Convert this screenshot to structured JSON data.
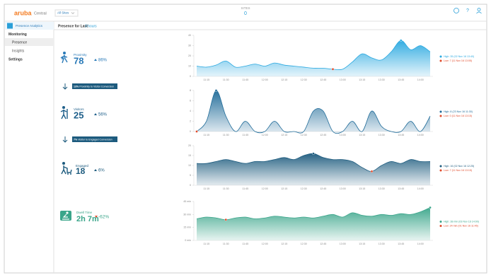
{
  "header": {
    "logo": "aruba",
    "product": "Central",
    "site_filter": "All Sites",
    "sites_label": "SITES",
    "sites_count": "0"
  },
  "sidebar": {
    "title": "Presence Analytics",
    "items": [
      "Monitoring",
      "Presence",
      "Insights",
      "Settings"
    ]
  },
  "main": {
    "period_label": "Presence for Last:",
    "period": "3 hours",
    "metrics": [
      {
        "label": "Proximity",
        "value": "78",
        "change": "86%"
      },
      {
        "label": "Visitors",
        "value": "25",
        "change": "56%"
      },
      {
        "label": "Engaged",
        "value": "18",
        "change": "6%"
      },
      {
        "label": "Dwell Time",
        "value": "2h 7m",
        "change": "-62%"
      }
    ],
    "conversions": [
      {
        "rate": "13%",
        "label": "Proximity to Visitor Conversion"
      },
      {
        "rate": "7%",
        "label": "Visitor to Engaged Conversion"
      }
    ]
  },
  "chart_data": [
    {
      "type": "area",
      "color": "#29a8e0",
      "categories": [
        null,
        "11:15",
        null,
        "11:30",
        null,
        "11:45",
        null,
        "12:00",
        null,
        "12:15",
        null,
        "12:30",
        null,
        "12:45",
        null,
        "13:00",
        null,
        "13:15",
        null,
        "13:30",
        null,
        "13:45",
        null,
        "14:00",
        null
      ],
      "values": [
        10,
        9,
        11,
        15,
        9,
        10,
        12,
        10,
        13,
        11,
        10,
        9,
        8,
        8,
        7,
        7,
        14,
        22,
        18,
        16,
        24,
        35,
        26,
        30,
        24
      ],
      "ylim": [
        0,
        40
      ],
      "yticks": [
        0,
        10,
        20,
        30,
        40
      ],
      "high_label": "High: 35 (02 Nov 16 13:40)",
      "low_label": "Low: 7 (11 Nov 16 13:05)"
    },
    {
      "type": "area",
      "color": "#1e6a98",
      "categories": [
        null,
        "11:15",
        null,
        "11:30",
        null,
        "11:45",
        null,
        "12:00",
        null,
        "12:15",
        null,
        "12:30",
        null,
        "12:45",
        null,
        "13:00",
        null,
        "13:15",
        null,
        "13:30",
        null,
        "13:45",
        null,
        "14:00",
        null
      ],
      "values": [
        0,
        2,
        8,
        3,
        0,
        2,
        0,
        0,
        2,
        0,
        0,
        0,
        4,
        4,
        0,
        0,
        2,
        0,
        4,
        1,
        0,
        0,
        2,
        0,
        3
      ],
      "ylim": [
        0,
        8
      ],
      "yticks": [
        0,
        2,
        4,
        6,
        8
      ],
      "high_label": "High: 8 (23 Nov 16 11:30)",
      "low_label": "Low: 0 (11 Nov 16 13:15)"
    },
    {
      "type": "area",
      "color": "#1d5b7e",
      "categories": [
        null,
        "11:15",
        null,
        "11:30",
        null,
        "11:45",
        null,
        "12:00",
        null,
        "12:15",
        null,
        "12:30",
        null,
        "12:45",
        null,
        "13:00",
        null,
        "13:15",
        null,
        "13:30",
        null,
        "13:45",
        null,
        "14:00",
        null
      ],
      "values": [
        11,
        11,
        12,
        13,
        12,
        11,
        12,
        12,
        13,
        14,
        13,
        15,
        16,
        14,
        13,
        13,
        12,
        9,
        7,
        10,
        12,
        11,
        13,
        12,
        12
      ],
      "ylim": [
        0,
        20
      ],
      "yticks": [
        0,
        5,
        10,
        15,
        20
      ],
      "high_label": "High: 16 (02 Nov 16 12:25)",
      "low_label": "Low: 7 (11 Nov 16 13:15)"
    },
    {
      "type": "area",
      "color": "#3aa58a",
      "categories": [
        null,
        "11:15",
        null,
        "11:30",
        null,
        "11:45",
        null,
        "12:00",
        null,
        "12:15",
        null,
        "12:30",
        null,
        "12:45",
        null,
        "13:00",
        null,
        "13:15",
        null,
        "13:30",
        null,
        "13:45",
        null,
        "14:00",
        null
      ],
      "values": [
        25,
        27,
        26,
        24,
        26,
        27,
        25,
        26,
        28,
        27,
        26,
        27,
        26,
        28,
        30,
        27,
        32,
        29,
        28,
        30,
        29,
        31,
        30,
        33,
        38
      ],
      "ylim": [
        0,
        45
      ],
      "yticks": [
        {
          "value": 0,
          "label": "0 min"
        },
        {
          "value": 15,
          "label": "15 min"
        },
        {
          "value": 30,
          "label": "30 min"
        },
        {
          "value": 45,
          "label": "45 min"
        }
      ],
      "high_label": "High: 38 min (03 Nov 16 14:00)",
      "low_label": "Low: 24 min (01 Nov 16 11:45)"
    }
  ]
}
